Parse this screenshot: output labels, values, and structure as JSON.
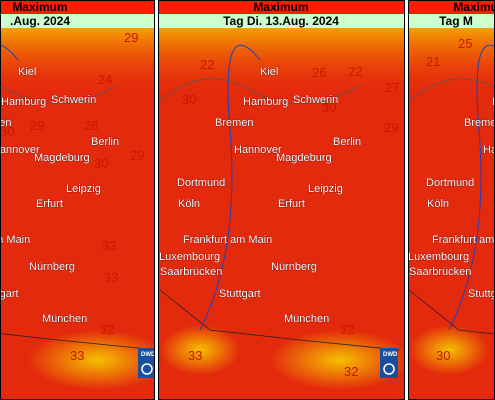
{
  "cities": [
    "Kiel",
    "Hamburg",
    "Schwerin",
    "Bremen",
    "Berlin",
    "Hannover",
    "Magdeburg",
    "Dortmund",
    "Leipzig",
    "Köln",
    "Erfurt",
    "Frankfurt am Main",
    "Luxembourg",
    "Saarbrücken",
    "Nürnberg",
    "Stuttgart",
    "München"
  ],
  "panels": [
    {
      "title": "Maximum",
      "date": ".Aug. 2024",
      "logo": "DWD",
      "temps": [
        29,
        24,
        29,
        28,
        30,
        29,
        30,
        33,
        33,
        32,
        33
      ]
    },
    {
      "title": "Maximum",
      "date": "Tag Di. 13.Aug. 2024",
      "logo": "DWD",
      "temps": [
        22,
        26,
        22,
        27,
        30,
        30,
        29,
        32,
        32,
        33
      ]
    },
    {
      "title": "Maximum",
      "date": "Tag M",
      "temps": [
        25,
        21,
        30
      ]
    }
  ]
}
